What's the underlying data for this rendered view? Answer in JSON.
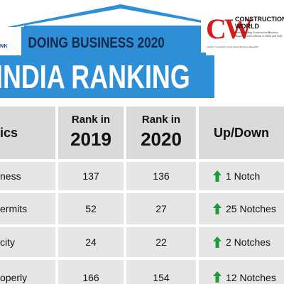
{
  "banner": {
    "corner_text": "NK",
    "doing_business_title": "DOING BUSINESS 2020",
    "main_title": "INDIA RANKING"
  },
  "logo": {
    "mark": "CW",
    "name_line1": "CONSTRUCTION",
    "name_line2": "WORLD",
    "tagline": "India's leading Construction Business Magazine with editions in India and Gulf",
    "sub": "Largest Circulated Construction Business Magazine"
  },
  "table": {
    "headers": {
      "col1": "ics",
      "col2_small": "Rank in",
      "col2_big": "2019",
      "col3_small": "Rank in",
      "col3_big": "2020",
      "col4": "Up/Down"
    },
    "rows": [
      {
        "label": "ness",
        "rank_2019": "137",
        "rank_2020": "136",
        "change": "1 Notch"
      },
      {
        "label": "ermits",
        "rank_2019": "52",
        "rank_2020": "27",
        "change": "25 Notches"
      },
      {
        "label": "city",
        "rank_2019": "24",
        "rank_2020": "22",
        "change": "2 Notches"
      },
      {
        "label": "operly",
        "rank_2019": "166",
        "rank_2020": "154",
        "change": "12 Notches"
      }
    ]
  },
  "colors": {
    "header_blue": "#2e8fd6",
    "navy": "#102a4c",
    "logo_red": "#d41e1e",
    "arrow_green": "#1f9a3a",
    "cell_gray": "#e6e6e6"
  },
  "icons": {
    "arrow": "up-arrow-icon",
    "roof": "roof-shape"
  }
}
